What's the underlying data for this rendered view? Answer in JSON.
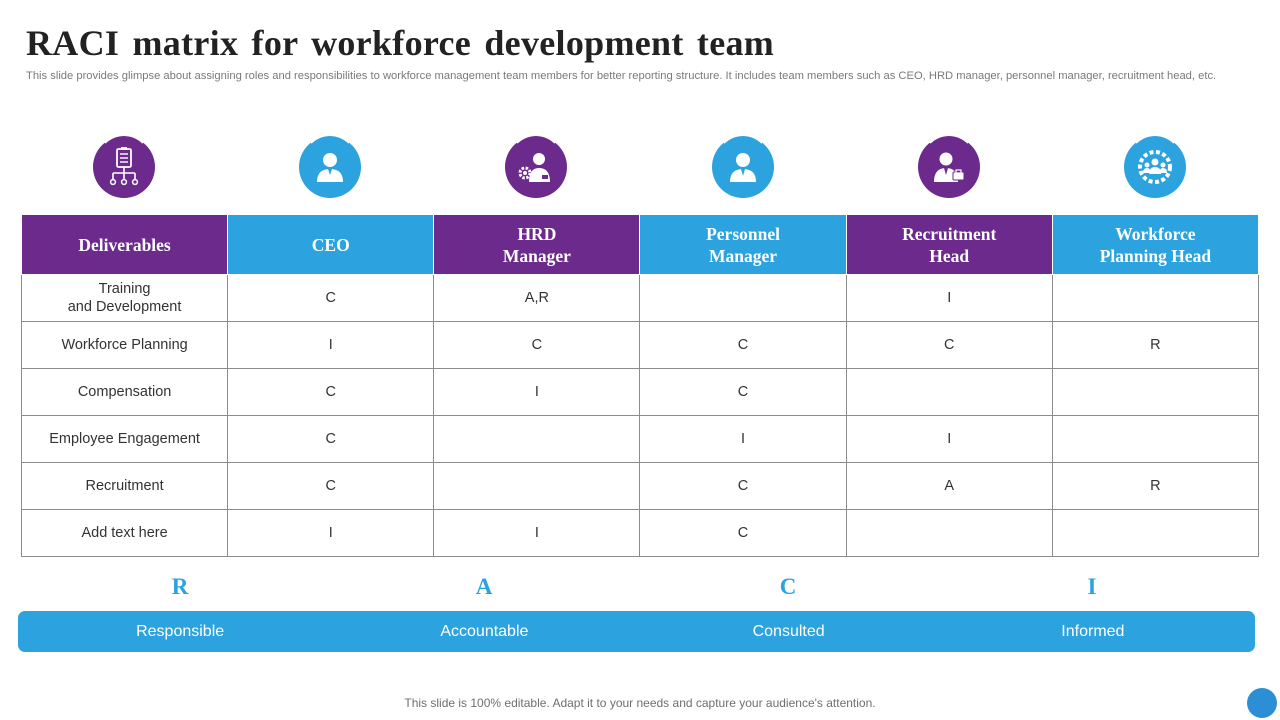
{
  "title": "RACI matrix for workforce development team",
  "subtitle": "This slide provides glimpse about assigning roles and responsibilities to workforce management team members for better reporting structure. It includes team members such as CEO, HRD manager, personnel manager, recruitment head, etc.",
  "colors": {
    "purple": "#6b2a8c",
    "blue": "#2ca3df",
    "border": "#8c8c8c"
  },
  "icons": [
    "flowchart-board-icon",
    "person-icon",
    "manager-gear-icon",
    "person-icon",
    "person-briefcase-icon",
    "team-gear-icon"
  ],
  "table": {
    "headers": [
      {
        "line1": "Deliverables",
        "line2": ""
      },
      {
        "line1": "CEO",
        "line2": ""
      },
      {
        "line1": "HRD",
        "line2": "Manager"
      },
      {
        "line1": "Personnel",
        "line2": "Manager"
      },
      {
        "line1": "Recruitment",
        "line2": "Head"
      },
      {
        "line1": "Workforce",
        "line2": "Planning Head"
      }
    ],
    "rows": [
      {
        "deliverable": "Training",
        "deliverable_line2": "and Development",
        "cells": [
          "C",
          "A,R",
          "",
          "I",
          ""
        ]
      },
      {
        "deliverable": "Workforce Planning",
        "deliverable_line2": "",
        "cells": [
          "I",
          "C",
          "C",
          "C",
          "R"
        ]
      },
      {
        "deliverable": "Compensation",
        "deliverable_line2": "",
        "cells": [
          "C",
          "I",
          "C",
          "",
          ""
        ]
      },
      {
        "deliverable": "Employee Engagement",
        "deliverable_line2": "",
        "cells": [
          "C",
          "",
          "I",
          "I",
          ""
        ]
      },
      {
        "deliverable": "Recruitment",
        "deliverable_line2": "",
        "cells": [
          "C",
          "",
          "C",
          "A",
          "R"
        ]
      },
      {
        "deliverable": "Add text here",
        "deliverable_line2": "",
        "cells": [
          "I",
          "I",
          "C",
          "",
          ""
        ]
      }
    ]
  },
  "legend": [
    {
      "letter": "R",
      "label": "Responsible"
    },
    {
      "letter": "A",
      "label": "Accountable"
    },
    {
      "letter": "C",
      "label": "Consulted"
    },
    {
      "letter": "I",
      "label": "Informed"
    }
  ],
  "footer": "This slide is 100% editable. Adapt it to your needs and capture your audience's attention."
}
